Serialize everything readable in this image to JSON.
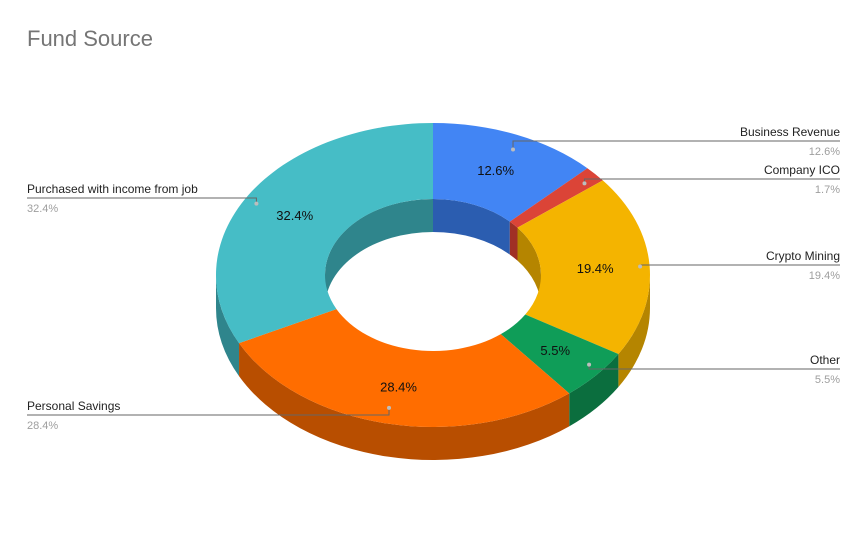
{
  "chart_data": {
    "type": "pie",
    "title": "Fund Source",
    "style": "3d-donut",
    "slices": [
      {
        "label": "Business Revenue",
        "value": 12.6,
        "value_label": "12.6%",
        "color": "#4285F4",
        "side_color": "#2B5DB0"
      },
      {
        "label": "Company ICO",
        "value": 1.7,
        "value_label": "1.7%",
        "color": "#DB4437",
        "side_color": "#A03025"
      },
      {
        "label": "Crypto Mining",
        "value": 19.4,
        "value_label": "19.4%",
        "color": "#F4B400",
        "side_color": "#B58500"
      },
      {
        "label": "Other",
        "value": 5.5,
        "value_label": "5.5%",
        "color": "#0F9D58",
        "side_color": "#0B6E3E"
      },
      {
        "label": "Personal Savings",
        "value": 28.4,
        "value_label": "28.4%",
        "color": "#FF6D00",
        "side_color": "#B84E00"
      },
      {
        "label": "Purchased with income from job",
        "value": 32.4,
        "value_label": "32.4%",
        "color": "#46BDC6",
        "side_color": "#2F858C"
      }
    ],
    "inner_labels_shown": [
      "12.6%",
      "19.4%",
      "5.5%",
      "28.4%",
      "32.4%"
    ],
    "legend": "callout-lines"
  }
}
